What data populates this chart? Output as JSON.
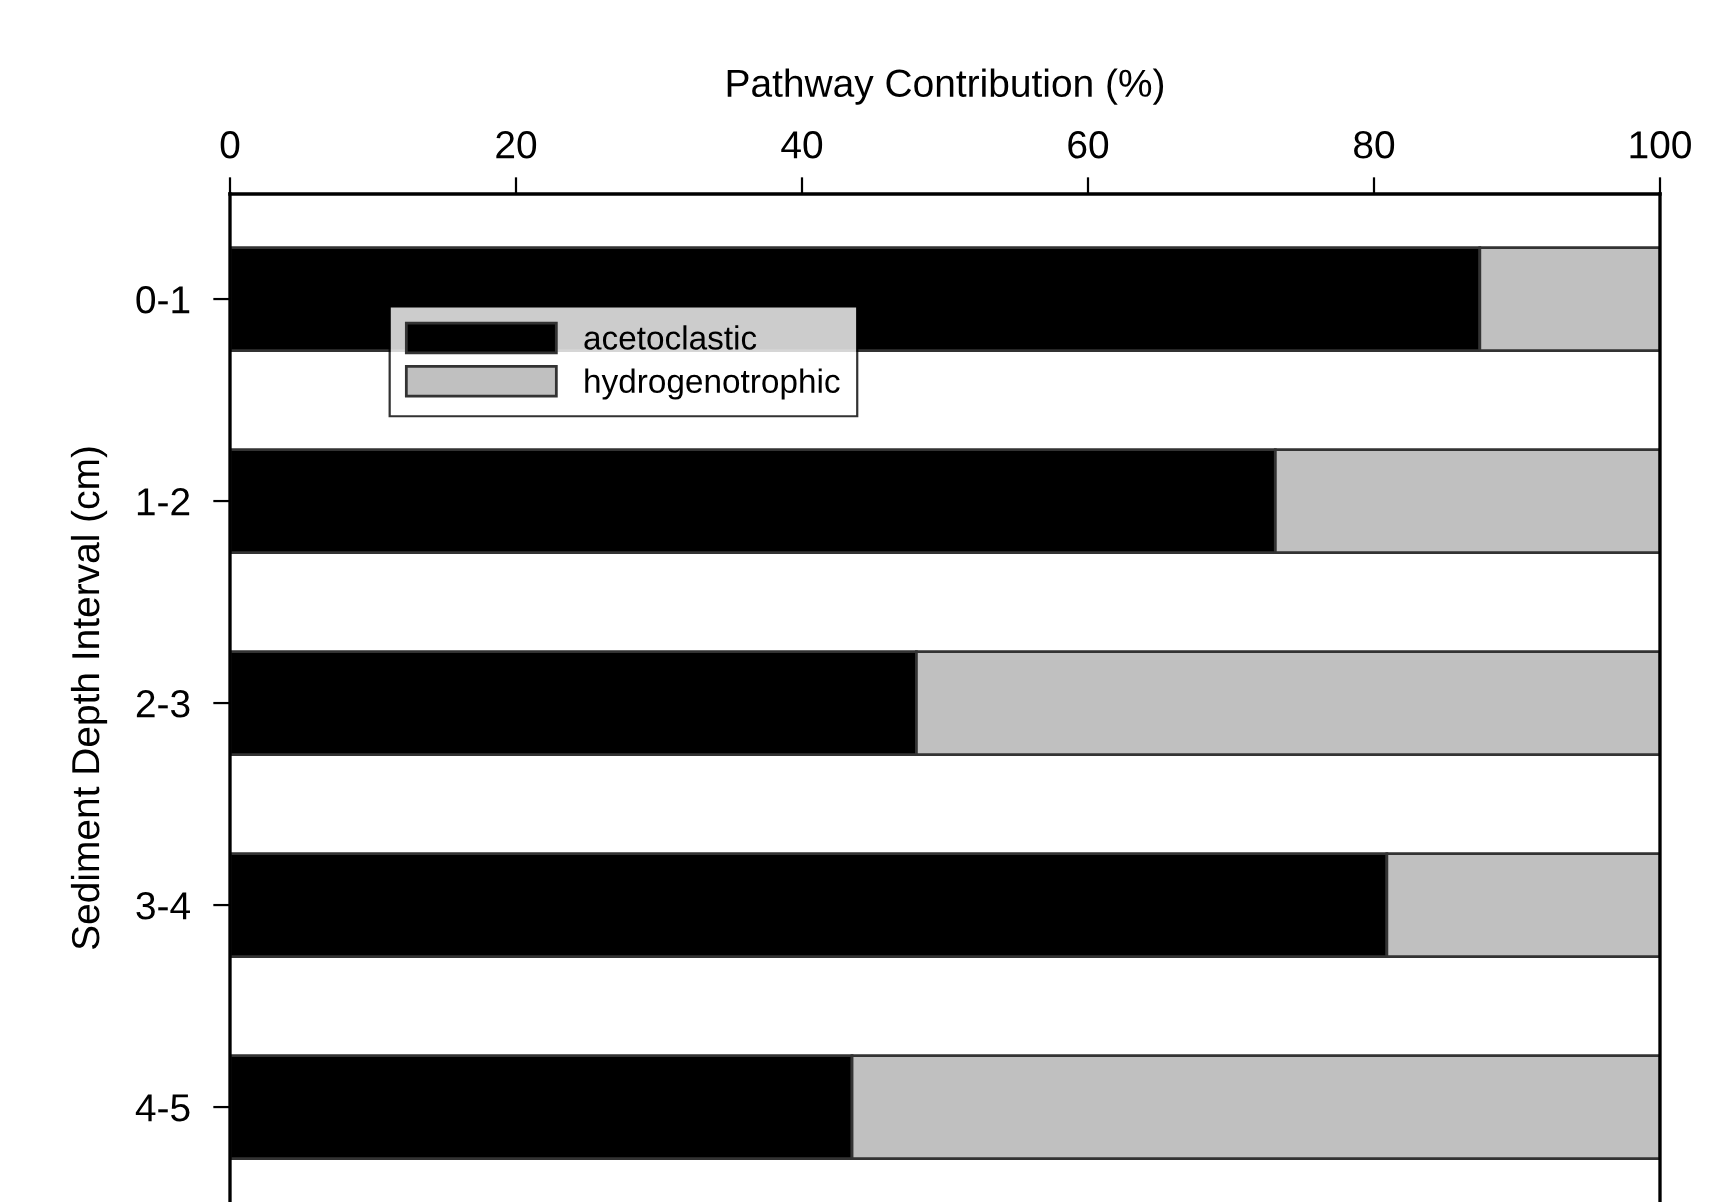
{
  "chart_data": {
    "type": "bar",
    "orientation": "horizontal",
    "stacked": true,
    "xlabel": "Pathway Contribution (%)",
    "ylabel": "Sediment Depth Interval (cm)",
    "categories": [
      "0-1",
      "1-2",
      "2-3",
      "3-4",
      "4-5"
    ],
    "series": [
      {
        "name": "acetoclastic",
        "color": "#000000",
        "values": [
          87.4,
          73.1,
          48.0,
          80.9,
          43.5
        ]
      },
      {
        "name": "hydrogenotrophic",
        "color": "#c0c0c0",
        "values": [
          12.6,
          26.9,
          52.0,
          19.1,
          56.5
        ]
      }
    ],
    "xlim": [
      0,
      100
    ],
    "xticks": [
      0,
      20,
      40,
      60,
      80,
      100
    ],
    "grid": false,
    "legend": "top left"
  }
}
